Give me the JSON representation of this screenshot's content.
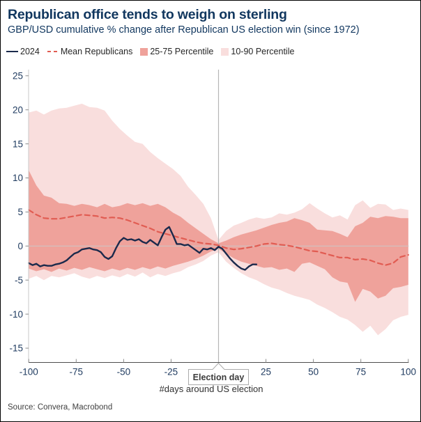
{
  "header": {
    "title": "Republican office tends to weigh on sterling",
    "subtitle": "GBP/USD cumulative % change after Republican US election win (since 1972)"
  },
  "legend": [
    {
      "label": "2024",
      "type": "line",
      "color": "#1b2a4c"
    },
    {
      "label": "Mean Republicans",
      "type": "dash",
      "color": "#e15c52"
    },
    {
      "label": "25-75 Percentile",
      "type": "box",
      "color": "#efa29b"
    },
    {
      "label": "10-90 Percentile",
      "type": "box",
      "color": "#f9dedd"
    }
  ],
  "colors": {
    "title_navy": "#11375f",
    "tick_label": "#1e3a5f",
    "axis_line": "#c9c9c9",
    "x_axis_line": "#4d4d4d",
    "tick_mark": "#8c8c8c",
    "zero_gridline": "#c9c9c9",
    "election_line": "#b5b5b5",
    "callout_border": "#ababab",
    "callout_text": "#3c3c3c"
  },
  "chart_data": {
    "type": "area",
    "title": "Republican office tends to weigh on sterling",
    "subtitle": "GBP/USD cumulative % change after Republican US election win (since 1972)",
    "xlabel": "#days around US election",
    "ylabel": "",
    "xlim": [
      -100,
      100
    ],
    "ylim": [
      -15,
      25
    ],
    "yticks": [
      25,
      20,
      15,
      10,
      5,
      0,
      -5,
      -10,
      -15
    ],
    "xticks": [
      -100,
      -75,
      -50,
      -25,
      25,
      50,
      75,
      100
    ],
    "grid": "zero-line-only",
    "legend_position": "top",
    "annotation": {
      "election_label": "Election day",
      "election_x": 0
    },
    "x_band": [
      -100,
      -96,
      -92,
      -88,
      -84,
      -80,
      -76,
      -72,
      -68,
      -64,
      -60,
      -56,
      -52,
      -48,
      -44,
      -40,
      -36,
      -32,
      -28,
      -24,
      -20,
      -16,
      -12,
      -8,
      -4,
      0,
      4,
      8,
      12,
      16,
      20,
      24,
      28,
      32,
      36,
      40,
      44,
      48,
      52,
      56,
      60,
      64,
      68,
      72,
      76,
      80,
      84,
      88,
      92,
      96,
      100
    ],
    "series": [
      {
        "name": "10-90 Percentile",
        "type": "band",
        "color": "#f9dedd",
        "upper": [
          19.6,
          19.9,
          19.3,
          19.9,
          20.2,
          20.3,
          20.6,
          20.9,
          20.4,
          20.3,
          19.9,
          18.4,
          17.2,
          16.2,
          15.3,
          15.0,
          13.8,
          12.9,
          12.1,
          11.3,
          10.3,
          8.7,
          7.5,
          6.2,
          4.1,
          0.9,
          2.2,
          3.0,
          3.4,
          3.9,
          4.2,
          4.0,
          4.2,
          4.8,
          4.6,
          4.9,
          5.4,
          6.3,
          5.5,
          4.8,
          4.2,
          4.5,
          3.9,
          6.0,
          6.7,
          5.6,
          6.2,
          6.1,
          5.3,
          5.5,
          5.3
        ],
        "lower": [
          -4.8,
          -4.4,
          -5.0,
          -4.4,
          -4.6,
          -4.3,
          -4.0,
          -4.5,
          -4.8,
          -4.4,
          -4.7,
          -4.3,
          -4.6,
          -4.1,
          -4.5,
          -3.9,
          -4.6,
          -4.1,
          -4.4,
          -4.0,
          -3.7,
          -3.1,
          -2.7,
          -2.2,
          -1.4,
          -0.9,
          -2.3,
          -3.2,
          -4.0,
          -4.6,
          -5.0,
          -5.6,
          -6.1,
          -6.4,
          -6.9,
          -7.3,
          -7.6,
          -7.9,
          -8.6,
          -9.1,
          -9.7,
          -10.4,
          -10.8,
          -11.6,
          -12.6,
          -11.7,
          -13.1,
          -12.2,
          -10.9,
          -10.4,
          -10.1
        ]
      },
      {
        "name": "25-75 Percentile",
        "type": "band",
        "color": "#efa29b",
        "upper": [
          11.1,
          8.9,
          7.4,
          7.1,
          6.3,
          6.2,
          5.9,
          6.2,
          6.0,
          5.7,
          6.2,
          5.7,
          5.9,
          6.3,
          6.0,
          6.3,
          5.9,
          6.2,
          5.7,
          4.9,
          4.3,
          3.4,
          2.6,
          1.8,
          1.0,
          0.4,
          0.8,
          1.3,
          1.7,
          2.0,
          2.3,
          2.7,
          3.1,
          3.4,
          3.6,
          4.1,
          3.8,
          3.4,
          2.4,
          2.3,
          2.2,
          1.8,
          1.3,
          2.9,
          3.4,
          4.3,
          4.1,
          4.4,
          4.3,
          4.1,
          4.1
        ],
        "lower": [
          -3.3,
          -3.7,
          -3.4,
          -3.8,
          -3.3,
          -3.6,
          -3.2,
          -3.5,
          -3.1,
          -3.4,
          -3.7,
          -3.3,
          -3.6,
          -3.2,
          -3.5,
          -3.1,
          -3.4,
          -3.0,
          -3.3,
          -2.9,
          -2.6,
          -2.3,
          -1.9,
          -1.4,
          -0.8,
          -0.4,
          -1.1,
          -1.8,
          -2.3,
          -2.6,
          -2.9,
          -3.2,
          -3.1,
          -3.5,
          -3.3,
          -3.8,
          -2.6,
          -2.4,
          -2.9,
          -3.4,
          -4.6,
          -5.2,
          -5.4,
          -8.2,
          -6.3,
          -6.7,
          -7.7,
          -7.3,
          -6.2,
          -6.0,
          -5.7
        ]
      },
      {
        "name": "Mean Republicans",
        "type": "dashed-line",
        "color": "#e15c52",
        "values": [
          5.3,
          4.6,
          4.1,
          4.0,
          4.0,
          4.2,
          4.4,
          4.6,
          4.5,
          4.4,
          4.1,
          4.2,
          4.1,
          3.8,
          3.4,
          3.0,
          2.6,
          2.1,
          1.8,
          1.5,
          1.2,
          0.9,
          0.6,
          0.4,
          0.3,
          0.1,
          -0.3,
          -0.5,
          -0.4,
          -0.2,
          0.0,
          0.3,
          0.4,
          0.2,
          0.1,
          -0.1,
          -0.4,
          -0.7,
          -0.8,
          -1.1,
          -1.4,
          -1.7,
          -1.7,
          -2.0,
          -1.9,
          -2.1,
          -2.5,
          -2.8,
          -2.5,
          -1.6,
          -1.3
        ]
      },
      {
        "name": "2024",
        "type": "line",
        "color": "#1b2a4c",
        "x": [
          -100,
          -98,
          -96,
          -94,
          -92,
          -90,
          -88,
          -86,
          -84,
          -82,
          -80,
          -78,
          -76,
          -74,
          -72,
          -70,
          -68,
          -66,
          -64,
          -62,
          -60,
          -58,
          -56,
          -54,
          -52,
          -50,
          -48,
          -46,
          -44,
          -42,
          -40,
          -38,
          -36,
          -34,
          -32,
          -30,
          -28,
          -26,
          -24,
          -22,
          -20,
          -18,
          -16,
          -14,
          -12,
          -10,
          -8,
          -6,
          -4,
          -2,
          0,
          2,
          4,
          6,
          8,
          10,
          12,
          14,
          16,
          18,
          20
        ],
        "values": [
          -2.5,
          -2.8,
          -2.6,
          -3.0,
          -2.8,
          -2.9,
          -2.9,
          -2.7,
          -2.6,
          -2.4,
          -2.1,
          -1.6,
          -1.1,
          -0.9,
          -0.5,
          -0.4,
          -0.3,
          -0.5,
          -0.6,
          -0.9,
          -1.6,
          -1.9,
          -1.5,
          -0.3,
          0.7,
          1.2,
          0.9,
          1.0,
          0.8,
          1.0,
          0.6,
          0.4,
          0.9,
          0.5,
          0.1,
          1.3,
          2.4,
          2.8,
          1.6,
          0.3,
          0.3,
          0.1,
          0.2,
          -0.2,
          -0.6,
          -1.0,
          -0.4,
          -0.5,
          -0.3,
          -0.6,
          -0.1,
          -0.4,
          -1.1,
          -1.8,
          -2.4,
          -2.9,
          -3.3,
          -3.5,
          -3.0,
          -2.7,
          -2.7
        ]
      }
    ]
  },
  "footer": {
    "source": "Source: Convera, Macrobond"
  }
}
